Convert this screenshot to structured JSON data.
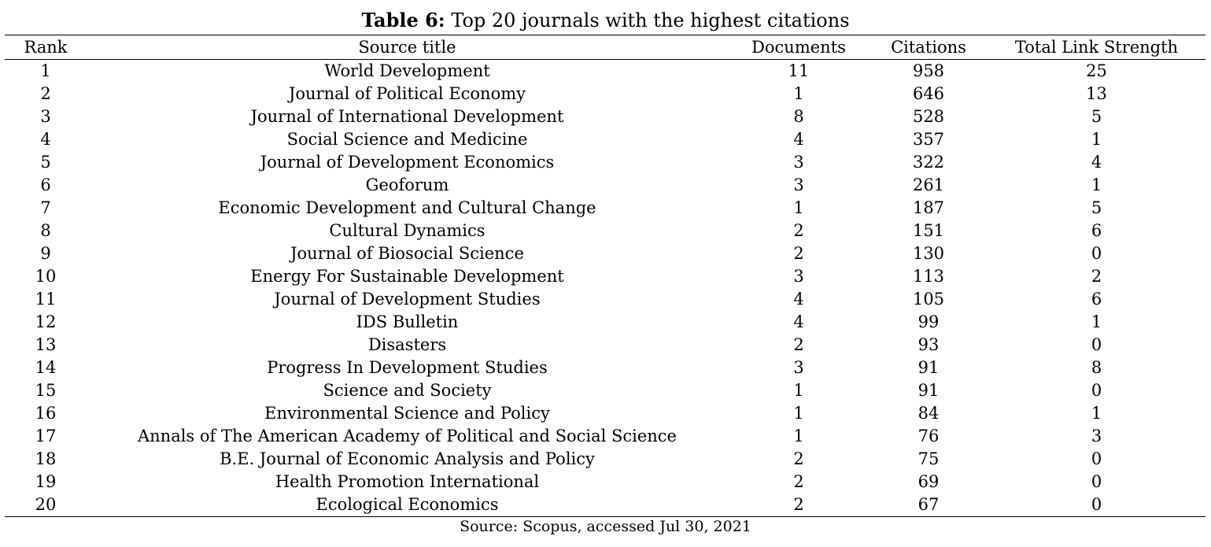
{
  "caption": {
    "label": "Table 6:",
    "text": "Top 20 journals with the highest citations"
  },
  "table": {
    "headers": [
      "Rank",
      "Source title",
      "Documents",
      "Citations",
      "Total Link Strength"
    ],
    "rows": [
      [
        "1",
        "World Development",
        "11",
        "958",
        "25"
      ],
      [
        "2",
        "Journal of Political Economy",
        "1",
        "646",
        "13"
      ],
      [
        "3",
        "Journal of International Development",
        "8",
        "528",
        "5"
      ],
      [
        "4",
        "Social Science and Medicine",
        "4",
        "357",
        "1"
      ],
      [
        "5",
        "Journal of Development Economics",
        "3",
        "322",
        "4"
      ],
      [
        "6",
        "Geoforum",
        "3",
        "261",
        "1"
      ],
      [
        "7",
        "Economic Development and Cultural Change",
        "1",
        "187",
        "5"
      ],
      [
        "8",
        "Cultural Dynamics",
        "2",
        "151",
        "6"
      ],
      [
        "9",
        "Journal of Biosocial Science",
        "2",
        "130",
        "0"
      ],
      [
        "10",
        "Energy For Sustainable Development",
        "3",
        "113",
        "2"
      ],
      [
        "11",
        "Journal of Development Studies",
        "4",
        "105",
        "6"
      ],
      [
        "12",
        "IDS Bulletin",
        "4",
        "99",
        "1"
      ],
      [
        "13",
        "Disasters",
        "2",
        "93",
        "0"
      ],
      [
        "14",
        "Progress In Development Studies",
        "3",
        "91",
        "8"
      ],
      [
        "15",
        "Science and Society",
        "1",
        "91",
        "0"
      ],
      [
        "16",
        "Environmental Science and Policy",
        "1",
        "84",
        "1"
      ],
      [
        "17",
        "Annals of The American Academy of Political and Social Science",
        "1",
        "76",
        "3"
      ],
      [
        "18",
        "B.E. Journal of Economic Analysis and Policy",
        "2",
        "75",
        "0"
      ],
      [
        "19",
        "Health Promotion International",
        "2",
        "69",
        "0"
      ],
      [
        "20",
        "Ecological Economics",
        "2",
        "67",
        "0"
      ]
    ]
  },
  "source_note": "Source: Scopus, accessed Jul 30, 2021"
}
